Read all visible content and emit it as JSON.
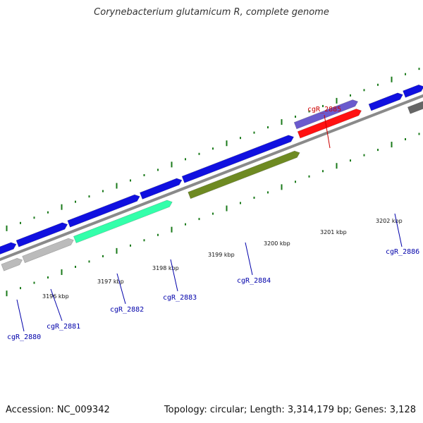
{
  "title": "Corynebacterium glutamicum R, complete genome",
  "footer": {
    "accession": "Accession: NC_009342",
    "stats": "Topology: circular; Length: 3,314,179 bp; Genes: 3,128"
  },
  "colors": {
    "backbone": "#8a8a8a",
    "tick": "#1a7a1a",
    "label_default": "#0000aa",
    "label_highlight": "#cc0000",
    "gene_blue": "#1010e0",
    "gene_grey": "#bbbbbb",
    "gene_teal": "#33ffaa",
    "gene_olive": "#6e8a22",
    "gene_lavender": "#6a5acd",
    "gene_red": "#ff1111",
    "gene_darkgrey": "#666666"
  },
  "scale_labels": [
    "3196 kbp",
    "3197 kbp",
    "3198 kbp",
    "3199 kbp",
    "3200 kbp",
    "3201 kbp",
    "3202 kbp"
  ],
  "gene_labels": [
    {
      "id": "cgR_2880",
      "color": "label_default"
    },
    {
      "id": "cgR_2881",
      "color": "label_default"
    },
    {
      "id": "cgR_2882",
      "color": "label_default"
    },
    {
      "id": "cgR_2883",
      "color": "label_default"
    },
    {
      "id": "cgR_2884",
      "color": "label_default"
    },
    {
      "id": "cgR_2885",
      "color": "label_highlight"
    },
    {
      "id": "cgR_2886",
      "color": "label_default"
    }
  ],
  "features": [
    {
      "name": "cgR_2880-cds",
      "color": "gene_blue"
    },
    {
      "name": "cgR_2880-gene",
      "color": "gene_grey"
    },
    {
      "name": "cgR_2881-cds",
      "color": "gene_blue"
    },
    {
      "name": "cgR_2881-gene",
      "color": "gene_grey"
    },
    {
      "name": "cgR_2882-cds",
      "color": "gene_blue"
    },
    {
      "name": "cgR_2882-gene",
      "color": "gene_teal"
    },
    {
      "name": "cgR_2883-cds",
      "color": "gene_blue"
    },
    {
      "name": "cgR_2884-cds",
      "color": "gene_blue"
    },
    {
      "name": "cgR_2884-gene",
      "color": "gene_olive"
    },
    {
      "name": "cgR_2885-cds",
      "color": "gene_red"
    },
    {
      "name": "cgR_2885-gene",
      "color": "gene_lavender"
    },
    {
      "name": "cgR_2886-cds-a",
      "color": "gene_blue"
    },
    {
      "name": "cgR_2886-cds-b",
      "color": "gene_blue"
    },
    {
      "name": "cgR_2886-gene",
      "color": "gene_darkgrey"
    }
  ]
}
